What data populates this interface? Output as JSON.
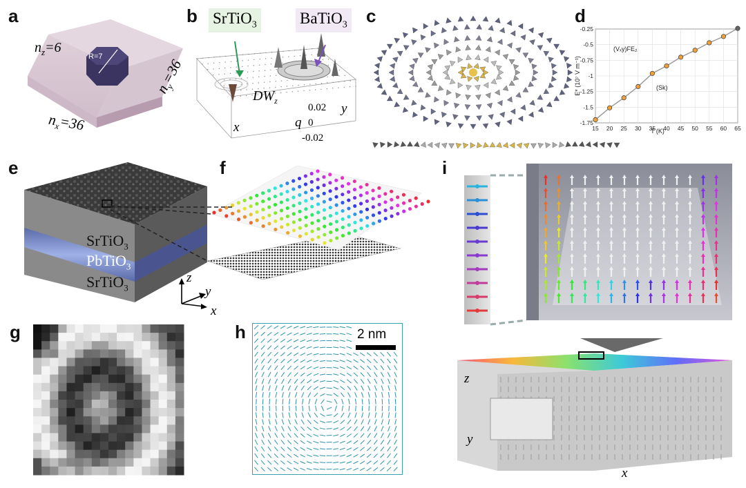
{
  "panels": {
    "a": {
      "letter": "a",
      "nz": "n",
      "nz_sub": "z",
      "nz_val": "=6",
      "nx": "n",
      "nx_sub": "x",
      "nx_val": "=36",
      "ny": "n",
      "ny_sub": "y",
      "ny_val": "=36",
      "radius": "R=7"
    },
    "b": {
      "letter": "b",
      "sto": "SrTiO",
      "bto": "BaTiO",
      "sub3": "3",
      "dw": "DW",
      "dw_sub": "z",
      "x_axis": "x",
      "y_axis": "y",
      "q_axis": "q",
      "ticks": [
        "0.02",
        "0",
        "-0.02"
      ]
    },
    "c": {
      "letter": "c"
    },
    "d": {
      "letter": "d"
    },
    "e": {
      "letter": "e",
      "layer_top": "SrTiO",
      "layer_mid": "PbTiO",
      "layer_bot": "SrTiO",
      "sub3": "3",
      "ax_z": "z",
      "ax_y": "y",
      "ax_x": "x"
    },
    "f": {
      "letter": "f"
    },
    "g": {
      "letter": "g"
    },
    "h": {
      "letter": "h",
      "scale": "2 nm"
    },
    "i": {
      "letter": "i",
      "ax_z": "z",
      "ax_y": "y",
      "ax_x": "x"
    }
  },
  "chart_data": {
    "type": "line",
    "xlabel": "T (K)",
    "ylabel": "E* (10⁷ V m⁻¹)",
    "xlim": [
      15,
      65
    ],
    "ylim": [
      -1.75,
      -0.25
    ],
    "xticks": [
      "15",
      "20",
      "25",
      "30",
      "35",
      "40",
      "45",
      "50",
      "55",
      "60",
      "65"
    ],
    "yticks": [
      "-0.25",
      "-0.5",
      "-0.75",
      "-1",
      "-1.25",
      "-1.5",
      "-1.75"
    ],
    "grid": true,
    "annotations": [
      "(Vₓy)FE₂",
      "(Sk)"
    ],
    "x": [
      15,
      20,
      25,
      30,
      35,
      40,
      45,
      50,
      55,
      60,
      65
    ],
    "y": [
      -1.7,
      -1.51,
      -1.35,
      -1.17,
      -0.96,
      -0.84,
      -0.7,
      -0.59,
      -0.47,
      -0.37,
      -0.24
    ]
  }
}
